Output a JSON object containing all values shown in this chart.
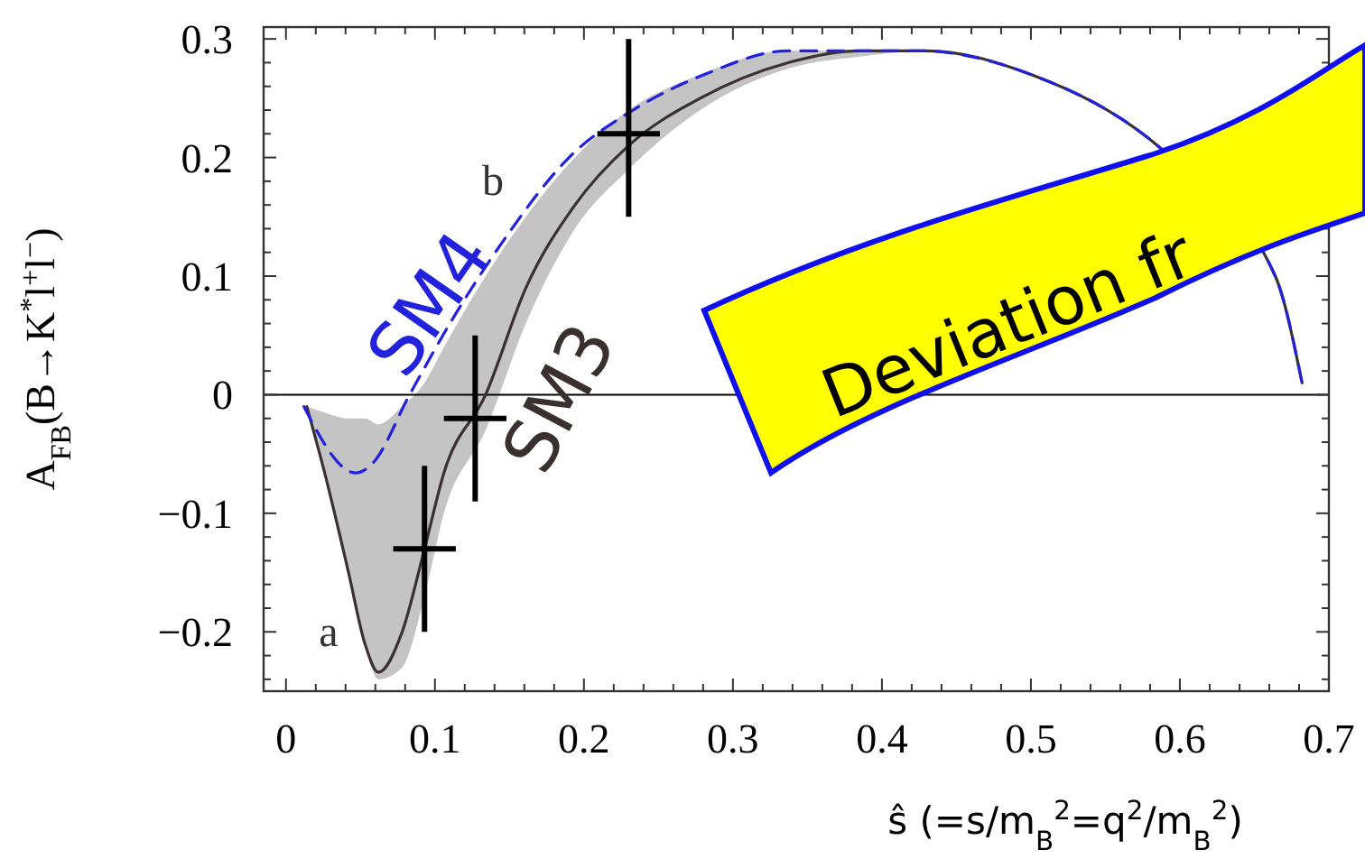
{
  "chart_data": {
    "type": "line",
    "xlabel": "ŝ  (=s/m$_{B}$$^{2}$=q$^{2}$/m$_{B}$$^{2}$)",
    "ylabel": "A$_{FB}$(B→K$^{*}$l$^{+}$l$^{−}$)",
    "xlim": [
      -0.015,
      0.7
    ],
    "ylim": [
      -0.25,
      0.31
    ],
    "xticks": [
      0,
      {
        "value": 0.02,
        "label": null
      },
      {
        "value": 0.04,
        "label": null
      },
      {
        "value": 0.06,
        "label": null
      },
      {
        "value": 0.08,
        "label": null
      },
      0.1,
      {
        "value": 0.12,
        "label": null
      },
      {
        "value": 0.14,
        "label": null
      },
      {
        "value": 0.16,
        "label": null
      },
      {
        "value": 0.18,
        "label": null
      },
      0.2,
      {
        "value": 0.22,
        "label": null
      },
      {
        "value": 0.24,
        "label": null
      },
      {
        "value": 0.26,
        "label": null
      },
      {
        "value": 0.28,
        "label": null
      },
      0.3,
      {
        "value": 0.32,
        "label": null
      },
      {
        "value": 0.34,
        "label": null
      },
      {
        "value": 0.36,
        "label": null
      },
      {
        "value": 0.38,
        "label": null
      },
      0.4,
      {
        "value": 0.42,
        "label": null
      },
      {
        "value": 0.44,
        "label": null
      },
      {
        "value": 0.46,
        "label": null
      },
      {
        "value": 0.48,
        "label": null
      },
      0.5,
      {
        "value": 0.52,
        "label": null
      },
      {
        "value": 0.54,
        "label": null
      },
      {
        "value": 0.56,
        "label": null
      },
      {
        "value": 0.58,
        "label": null
      },
      0.6,
      {
        "value": 0.62,
        "label": null
      },
      {
        "value": 0.64,
        "label": null
      },
      {
        "value": 0.66,
        "label": null
      },
      {
        "value": 0.68,
        "label": null
      },
      0.7
    ],
    "yticks": [
      {
        "value": -0.24,
        "label": null
      },
      {
        "value": -0.22,
        "label": null
      },
      {
        "value": -0.2,
        "label": "−0.2"
      },
      {
        "value": -0.18,
        "label": null
      },
      {
        "value": -0.16,
        "label": null
      },
      {
        "value": -0.14,
        "label": null
      },
      {
        "value": -0.12,
        "label": null
      },
      {
        "value": -0.1,
        "label": "−0.1"
      },
      {
        "value": -0.08,
        "label": null
      },
      {
        "value": -0.06,
        "label": null
      },
      {
        "value": -0.04,
        "label": null
      },
      {
        "value": -0.02,
        "label": null
      },
      0,
      {
        "value": 0.02,
        "label": null
      },
      {
        "value": 0.04,
        "label": null
      },
      {
        "value": 0.06,
        "label": null
      },
      {
        "value": 0.08,
        "label": null
      },
      0.1,
      {
        "value": 0.12,
        "label": null
      },
      {
        "value": 0.14,
        "label": null
      },
      {
        "value": 0.16,
        "label": null
      },
      {
        "value": 0.18,
        "label": null
      },
      0.2,
      {
        "value": 0.22,
        "label": null
      },
      {
        "value": 0.24,
        "label": null
      },
      {
        "value": 0.26,
        "label": null
      },
      {
        "value": 0.28,
        "label": null
      },
      0.3
    ],
    "grid": false,
    "ref_lines": [
      {
        "axis": "y",
        "value": 0,
        "color": "#000000"
      }
    ],
    "series": [
      {
        "name": "SM3",
        "color": "#3a3030",
        "line_style": "solid",
        "x": [
          0.014,
          0.026,
          0.042,
          0.053,
          0.062,
          0.078,
          0.093,
          0.106,
          0.134,
          0.161,
          0.194,
          0.23,
          0.278,
          0.337,
          0.385,
          0.43,
          0.5,
          0.585,
          0.664,
          0.682
        ],
        "values": [
          -0.01,
          -0.066,
          -0.15,
          -0.21,
          -0.234,
          -0.2,
          -0.13,
          -0.066,
          0,
          0.09,
          0.16,
          0.21,
          0.25,
          0.28,
          0.29,
          0.29,
          0.27,
          0.21,
          0.1,
          0.01
        ],
        "lower": [
          -0.01,
          -0.066,
          -0.15,
          -0.21,
          -0.24,
          -0.23,
          -0.17,
          -0.1,
          -0.03,
          0.06,
          0.14,
          0.19,
          0.24,
          0.275,
          0.285,
          0.29,
          0.27,
          0.21,
          0.1,
          0.01
        ],
        "upper": [
          -0.01,
          -0.015,
          -0.02,
          -0.02,
          -0.025,
          -0.01,
          0.01,
          0.04,
          0.1,
          0.15,
          0.2,
          0.24,
          0.27,
          0.29,
          0.29,
          0.29,
          0.27,
          0.21,
          0.1,
          0.01
        ]
      },
      {
        "name": "SM4",
        "color": "#2222dd",
        "line_style": "dashed",
        "x": [
          0.012,
          0.047,
          0.058,
          0.083,
          0.11,
          0.146,
          0.19,
          0.233,
          0.281,
          0.337,
          0.365,
          0.425,
          0.5,
          0.585,
          0.664,
          0.682
        ],
        "values": [
          -0.01,
          -0.066,
          -0.058,
          0,
          0.06,
          0.13,
          0.2,
          0.24,
          0.27,
          0.29,
          0.29,
          0.29,
          0.27,
          0.21,
          0.1,
          0.01
        ]
      },
      {
        "type": "scatter",
        "color": "#000000",
        "marker": "cross",
        "x": [
          0.093,
          0.127,
          0.23
        ],
        "values": [
          -0.13,
          -0.02,
          0.22
        ],
        "errors": [
          [
            -0.2,
            -0.06
          ],
          [
            -0.09,
            0.05
          ],
          [
            0.15,
            0.3
          ]
        ],
        "xerrors": [
          [
            0.072,
            0.114
          ],
          [
            0.106,
            0.148
          ],
          [
            0.209,
            0.251
          ]
        ]
      }
    ],
    "annotations": [
      "a",
      "b",
      "Deviation fr"
    ]
  }
}
